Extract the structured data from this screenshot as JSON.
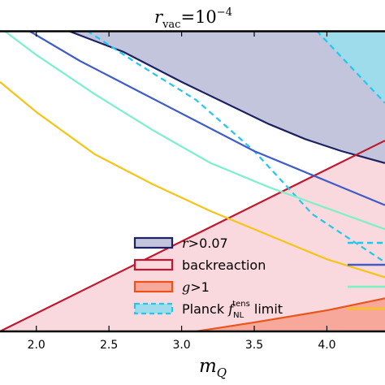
{
  "chart_data": {
    "type": "area",
    "title": {
      "base": "r",
      "sub": "vac",
      "op": "=",
      "mant": "10",
      "exp": "−4"
    },
    "xlabel": {
      "base": "m",
      "sub": "Q"
    },
    "xlim": [
      1.75,
      4.4
    ],
    "ylim": [
      0,
      1
    ],
    "grid": false,
    "legend_placement": "bottom-center",
    "x_ticks": [
      2.0,
      2.5,
      3.0,
      3.5,
      4.0
    ],
    "x_tick_labels": [
      "2.0",
      "2.5",
      "3.0",
      "3.5",
      "4.0"
    ],
    "regions": [
      {
        "name": "r>0.07",
        "fill": "#c3c5dc",
        "edge": "#1b2161",
        "lower": {
          "x": [
            2.22,
            2.6,
            3.0,
            3.3,
            3.6,
            3.85,
            4.1,
            4.4
          ],
          "y": [
            1.0,
            0.93,
            0.83,
            0.76,
            0.69,
            0.64,
            0.6,
            0.56
          ]
        }
      },
      {
        "name": "backreaction",
        "fill": "#f9d9de",
        "edge": "#c0182f",
        "boundary": {
          "x": [
            1.75,
            4.4
          ],
          "y": [
            0.0,
            0.635
          ]
        }
      },
      {
        "name": "g>1",
        "fill": "#f7a89a",
        "edge": "#e8541a",
        "upper": {
          "x": [
            3.1,
            3.5,
            4.0,
            4.4
          ],
          "y": [
            0.0,
            0.03,
            0.07,
            0.11
          ]
        }
      },
      {
        "name": "Planck f_NL^tens limit",
        "fill": "#9fdceb",
        "edge": "#1ec8ef",
        "lower": {
          "x": [
            3.93,
            4.4
          ],
          "y": [
            1.0,
            0.76
          ]
        }
      }
    ],
    "series": [
      {
        "color": "#1ec8ef",
        "style": "dashed",
        "x": [
          2.35,
          2.7,
          3.1,
          3.5,
          3.9,
          4.4
        ],
        "y": [
          1.0,
          0.89,
          0.77,
          0.6,
          0.39,
          0.23
        ]
      },
      {
        "color": "#3f5cc8",
        "style": "solid",
        "x": [
          1.95,
          2.3,
          2.7,
          3.1,
          3.5,
          3.8,
          4.1,
          4.4
        ],
        "y": [
          1.0,
          0.9,
          0.8,
          0.7,
          0.6,
          0.54,
          0.48,
          0.42
        ]
      },
      {
        "color": "#7cf0c8",
        "style": "solid",
        "x": [
          1.78,
          2.0,
          2.4,
          2.8,
          3.2,
          3.6,
          4.0,
          4.4
        ],
        "y": [
          1.0,
          0.92,
          0.79,
          0.67,
          0.56,
          0.48,
          0.41,
          0.34
        ]
      },
      {
        "color": "#f5c416",
        "style": "solid",
        "x": [
          1.75,
          2.0,
          2.4,
          2.8,
          3.2,
          3.6,
          4.0,
          4.4
        ],
        "y": [
          0.83,
          0.73,
          0.59,
          0.49,
          0.4,
          0.32,
          0.24,
          0.18
        ]
      }
    ],
    "legend": [
      {
        "kind": "patch",
        "label": [
          "r",
          ">0.07"
        ],
        "fill": "#c3c5dc",
        "edge": "#1b2161",
        "dash": false
      },
      {
        "kind": "patch",
        "label": [
          "backreaction"
        ],
        "fill": "#f9d9de",
        "edge": "#c0182f",
        "dash": false
      },
      {
        "kind": "patch",
        "label": [
          "g",
          ">1"
        ],
        "fill": "#f7a89a",
        "edge": "#e8541a",
        "dash": false
      },
      {
        "kind": "patch",
        "label": [
          "Planck ",
          "f",
          "NL",
          "tens",
          " limit"
        ],
        "fill": "#9fdceb",
        "edge": "#1ec8ef",
        "dash": true
      },
      {
        "kind": "line",
        "color": "#1ec8ef",
        "dash": true
      },
      {
        "kind": "line",
        "color": "#3f5cc8",
        "dash": false
      },
      {
        "kind": "line",
        "color": "#7cf0c8",
        "dash": false
      },
      {
        "kind": "line",
        "color": "#f5c416",
        "dash": false
      }
    ]
  }
}
